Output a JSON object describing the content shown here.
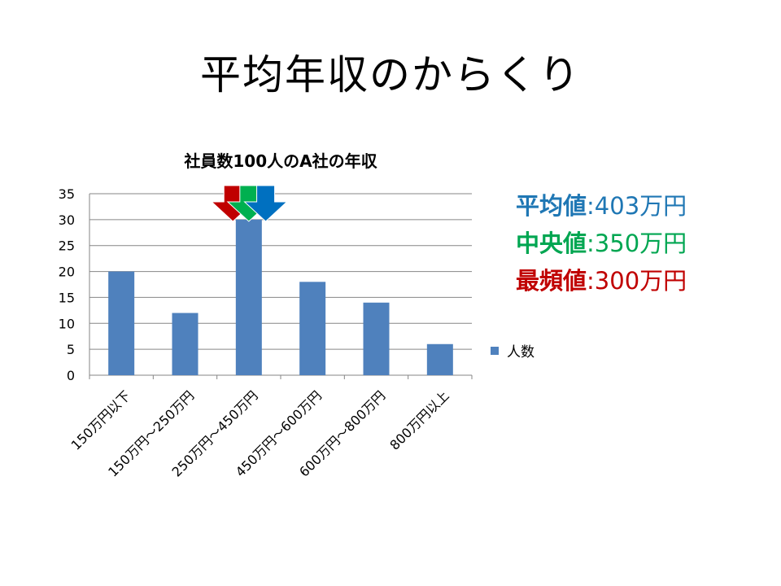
{
  "slide": {
    "title": "平均年収のからくり"
  },
  "chart_data": {
    "type": "bar",
    "title": "社員数100人のA社の年収",
    "categories": [
      "150万円以下",
      "150万円～250万円",
      "250万円～450万円",
      "450万円～600万円",
      "600万円～800万円",
      "800万円以上"
    ],
    "series": [
      {
        "name": "人数",
        "values": [
          20,
          12,
          30,
          18,
          14,
          6
        ],
        "color": "#4f81bd"
      }
    ],
    "ylim": [
      0,
      35
    ],
    "yticks": [
      0,
      5,
      10,
      15,
      20,
      25,
      30,
      35
    ],
    "grid": true,
    "legend": "right",
    "markers": [
      {
        "color": "#c00000",
        "position_value": 300
      },
      {
        "color": "#00b050",
        "position_value": 350
      },
      {
        "color": "#0070c0",
        "position_value": 403
      }
    ]
  },
  "stats": [
    {
      "label": "平均値",
      "sep": ":",
      "value": "403万円",
      "color": "#1f77b4"
    },
    {
      "label": "中央値",
      "sep": ":",
      "value": "350万円",
      "color": "#00a651"
    },
    {
      "label": "最頻値",
      "sep": ":",
      "value": "300万円",
      "color": "#c00000"
    }
  ]
}
